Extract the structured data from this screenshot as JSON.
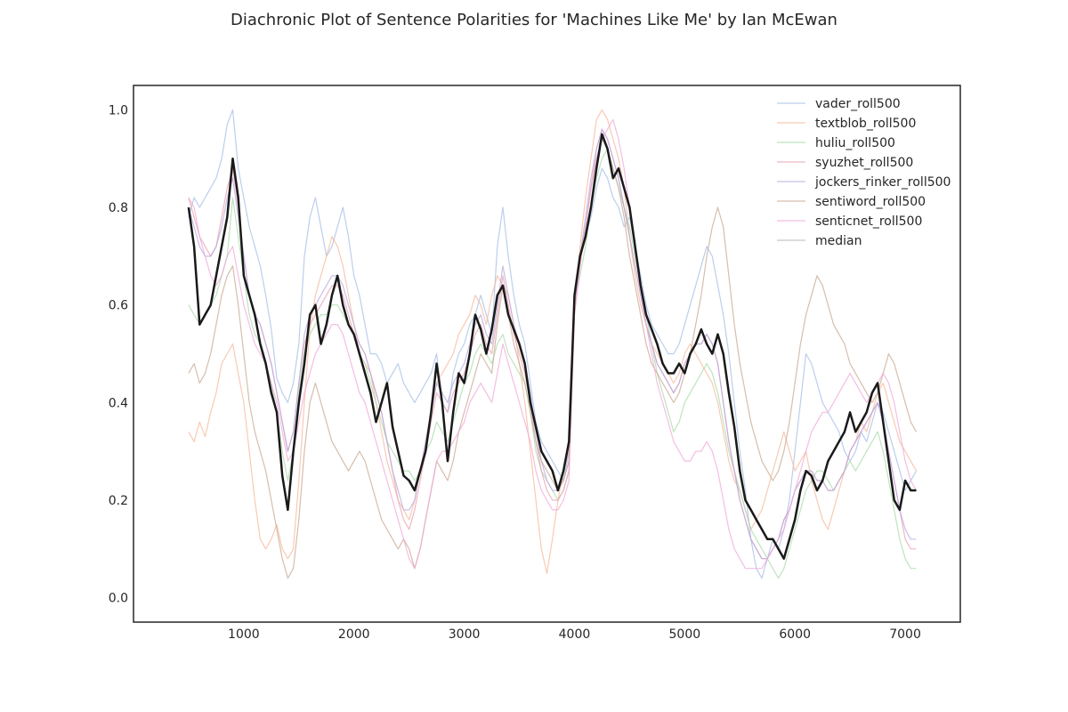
{
  "chart_data": {
    "type": "line",
    "title": "Diachronic Plot of Sentence Polarities for 'Machines Like Me' by Ian McEwan",
    "xlabel": "",
    "ylabel": "",
    "xlim": [
      0,
      7500
    ],
    "ylim": [
      -0.05,
      1.05
    ],
    "xticks": [
      1000,
      2000,
      3000,
      4000,
      5000,
      6000,
      7000
    ],
    "yticks": [
      0.0,
      0.2,
      0.4,
      0.6,
      0.8,
      1.0
    ],
    "grid": false,
    "legend_position": "top-right",
    "x": [
      500,
      550,
      600,
      650,
      700,
      750,
      800,
      850,
      900,
      950,
      1000,
      1050,
      1100,
      1150,
      1200,
      1250,
      1300,
      1350,
      1400,
      1450,
      1500,
      1550,
      1600,
      1650,
      1700,
      1750,
      1800,
      1850,
      1900,
      1950,
      2000,
      2050,
      2100,
      2150,
      2200,
      2250,
      2300,
      2350,
      2400,
      2450,
      2500,
      2550,
      2600,
      2650,
      2700,
      2750,
      2800,
      2850,
      2900,
      2950,
      3000,
      3050,
      3100,
      3150,
      3200,
      3250,
      3300,
      3350,
      3400,
      3450,
      3500,
      3550,
      3600,
      3650,
      3700,
      3750,
      3800,
      3850,
      3900,
      3950,
      4000,
      4050,
      4100,
      4150,
      4200,
      4250,
      4300,
      4350,
      4400,
      4450,
      4500,
      4550,
      4600,
      4650,
      4700,
      4750,
      4800,
      4850,
      4900,
      4950,
      5000,
      5050,
      5100,
      5150,
      5200,
      5250,
      5300,
      5350,
      5400,
      5450,
      5500,
      5550,
      5600,
      5650,
      5700,
      5750,
      5800,
      5850,
      5900,
      5950,
      6000,
      6050,
      6100,
      6150,
      6200,
      6250,
      6300,
      6350,
      6400,
      6450,
      6500,
      6550,
      6600,
      6650,
      6700,
      6750,
      6800,
      6850,
      6900,
      6950,
      7000,
      7050,
      7100
    ],
    "series": [
      {
        "name": "vader_roll500",
        "color": "#a6bde6",
        "values": [
          0.78,
          0.82,
          0.8,
          0.82,
          0.84,
          0.86,
          0.9,
          0.97,
          1.0,
          0.88,
          0.82,
          0.76,
          0.72,
          0.68,
          0.62,
          0.55,
          0.45,
          0.42,
          0.4,
          0.44,
          0.52,
          0.7,
          0.78,
          0.82,
          0.76,
          0.7,
          0.72,
          0.76,
          0.8,
          0.74,
          0.66,
          0.62,
          0.56,
          0.5,
          0.5,
          0.48,
          0.44,
          0.46,
          0.48,
          0.44,
          0.42,
          0.4,
          0.42,
          0.44,
          0.46,
          0.5,
          0.4,
          0.38,
          0.46,
          0.5,
          0.52,
          0.56,
          0.58,
          0.62,
          0.58,
          0.54,
          0.72,
          0.8,
          0.7,
          0.62,
          0.56,
          0.52,
          0.44,
          0.36,
          0.32,
          0.3,
          0.28,
          0.26,
          0.24,
          0.3,
          0.6,
          0.7,
          0.74,
          0.78,
          0.84,
          0.88,
          0.86,
          0.82,
          0.8,
          0.76,
          0.78,
          0.72,
          0.66,
          0.6,
          0.56,
          0.54,
          0.52,
          0.5,
          0.5,
          0.52,
          0.56,
          0.6,
          0.64,
          0.68,
          0.72,
          0.7,
          0.64,
          0.58,
          0.5,
          0.4,
          0.3,
          0.22,
          0.12,
          0.06,
          0.04,
          0.08,
          0.12,
          0.1,
          0.14,
          0.2,
          0.3,
          0.4,
          0.5,
          0.48,
          0.44,
          0.4,
          0.38,
          0.36,
          0.34,
          0.3,
          0.28,
          0.3,
          0.34,
          0.32,
          0.36,
          0.4,
          0.38,
          0.34,
          0.3,
          0.26,
          0.22,
          0.24,
          0.26
        ]
      },
      {
        "name": "textblob_roll500",
        "color": "#f7b89a",
        "values": [
          0.34,
          0.32,
          0.36,
          0.33,
          0.38,
          0.42,
          0.48,
          0.5,
          0.52,
          0.46,
          0.4,
          0.3,
          0.2,
          0.12,
          0.1,
          0.12,
          0.15,
          0.1,
          0.08,
          0.1,
          0.24,
          0.4,
          0.55,
          0.62,
          0.66,
          0.7,
          0.74,
          0.72,
          0.68,
          0.62,
          0.56,
          0.5,
          0.48,
          0.46,
          0.4,
          0.34,
          0.28,
          0.24,
          0.2,
          0.18,
          0.16,
          0.2,
          0.26,
          0.32,
          0.38,
          0.44,
          0.46,
          0.48,
          0.5,
          0.54,
          0.56,
          0.58,
          0.62,
          0.6,
          0.56,
          0.62,
          0.66,
          0.64,
          0.62,
          0.56,
          0.48,
          0.4,
          0.3,
          0.2,
          0.1,
          0.05,
          0.12,
          0.2,
          0.26,
          0.3,
          0.6,
          0.72,
          0.82,
          0.9,
          0.98,
          1.0,
          0.98,
          0.94,
          0.9,
          0.84,
          0.74,
          0.66,
          0.6,
          0.56,
          0.52,
          0.5,
          0.48,
          0.46,
          0.44,
          0.46,
          0.5,
          0.52,
          0.5,
          0.48,
          0.46,
          0.44,
          0.4,
          0.34,
          0.28,
          0.24,
          0.22,
          0.18,
          0.14,
          0.16,
          0.18,
          0.22,
          0.26,
          0.3,
          0.34,
          0.3,
          0.26,
          0.28,
          0.3,
          0.24,
          0.2,
          0.16,
          0.14,
          0.18,
          0.22,
          0.26,
          0.3,
          0.32,
          0.36,
          0.34,
          0.38,
          0.42,
          0.44,
          0.4,
          0.36,
          0.32,
          0.3,
          0.28,
          0.26
        ]
      },
      {
        "name": "huliu_roll500",
        "color": "#a8dba8",
        "values": [
          0.6,
          0.58,
          0.56,
          0.58,
          0.6,
          0.62,
          0.66,
          0.7,
          0.82,
          0.74,
          0.66,
          0.58,
          0.54,
          0.52,
          0.48,
          0.44,
          0.38,
          0.3,
          0.24,
          0.3,
          0.42,
          0.5,
          0.54,
          0.56,
          0.58,
          0.58,
          0.6,
          0.6,
          0.58,
          0.56,
          0.54,
          0.5,
          0.48,
          0.44,
          0.4,
          0.36,
          0.32,
          0.3,
          0.28,
          0.26,
          0.26,
          0.24,
          0.26,
          0.3,
          0.32,
          0.36,
          0.34,
          0.32,
          0.36,
          0.4,
          0.44,
          0.46,
          0.5,
          0.52,
          0.5,
          0.48,
          0.52,
          0.54,
          0.5,
          0.48,
          0.46,
          0.44,
          0.38,
          0.3,
          0.26,
          0.24,
          0.22,
          0.2,
          0.22,
          0.26,
          0.6,
          0.66,
          0.72,
          0.8,
          0.86,
          0.9,
          0.92,
          0.88,
          0.84,
          0.8,
          0.76,
          0.7,
          0.64,
          0.58,
          0.52,
          0.46,
          0.42,
          0.38,
          0.34,
          0.36,
          0.4,
          0.42,
          0.44,
          0.46,
          0.48,
          0.46,
          0.42,
          0.36,
          0.3,
          0.26,
          0.22,
          0.18,
          0.14,
          0.12,
          0.1,
          0.08,
          0.06,
          0.04,
          0.06,
          0.1,
          0.14,
          0.18,
          0.22,
          0.24,
          0.26,
          0.26,
          0.24,
          0.22,
          0.24,
          0.26,
          0.28,
          0.26,
          0.28,
          0.3,
          0.32,
          0.34,
          0.3,
          0.24,
          0.18,
          0.12,
          0.08,
          0.06,
          0.06
        ]
      },
      {
        "name": "syuzhet_roll500",
        "color": "#e8a0b0",
        "values": [
          0.82,
          0.78,
          0.74,
          0.72,
          0.7,
          0.72,
          0.78,
          0.84,
          0.88,
          0.8,
          0.7,
          0.62,
          0.58,
          0.56,
          0.52,
          0.48,
          0.42,
          0.36,
          0.3,
          0.34,
          0.44,
          0.52,
          0.56,
          0.58,
          0.6,
          0.62,
          0.64,
          0.64,
          0.62,
          0.58,
          0.54,
          0.52,
          0.5,
          0.46,
          0.42,
          0.38,
          0.32,
          0.26,
          0.2,
          0.16,
          0.14,
          0.18,
          0.24,
          0.3,
          0.36,
          0.42,
          0.4,
          0.38,
          0.42,
          0.44,
          0.46,
          0.5,
          0.54,
          0.56,
          0.52,
          0.5,
          0.58,
          0.66,
          0.6,
          0.54,
          0.5,
          0.46,
          0.4,
          0.32,
          0.26,
          0.22,
          0.2,
          0.2,
          0.22,
          0.26,
          0.58,
          0.68,
          0.76,
          0.84,
          0.92,
          0.96,
          0.94,
          0.9,
          0.86,
          0.8,
          0.74,
          0.68,
          0.62,
          0.56,
          0.52,
          0.48,
          0.46,
          0.44,
          0.42,
          0.44,
          0.48,
          0.5,
          0.52,
          0.52,
          0.54,
          0.52,
          0.48,
          0.4,
          0.32,
          0.26,
          0.2,
          0.16,
          0.12,
          0.1,
          0.08,
          0.08,
          0.1,
          0.12,
          0.16,
          0.18,
          0.22,
          0.24,
          0.26,
          0.26,
          0.24,
          0.24,
          0.22,
          0.22,
          0.24,
          0.26,
          0.3,
          0.32,
          0.34,
          0.36,
          0.38,
          0.4,
          0.36,
          0.3,
          0.24,
          0.18,
          0.12,
          0.1,
          0.1
        ]
      },
      {
        "name": "jockers_rinker_roll500",
        "color": "#b8a8e0",
        "values": [
          0.8,
          0.76,
          0.72,
          0.7,
          0.7,
          0.72,
          0.76,
          0.82,
          0.86,
          0.78,
          0.7,
          0.62,
          0.58,
          0.56,
          0.52,
          0.48,
          0.42,
          0.36,
          0.3,
          0.34,
          0.44,
          0.54,
          0.58,
          0.6,
          0.62,
          0.64,
          0.66,
          0.66,
          0.64,
          0.6,
          0.56,
          0.52,
          0.5,
          0.46,
          0.42,
          0.38,
          0.32,
          0.26,
          0.22,
          0.18,
          0.18,
          0.2,
          0.26,
          0.32,
          0.38,
          0.44,
          0.42,
          0.4,
          0.44,
          0.46,
          0.48,
          0.52,
          0.56,
          0.58,
          0.54,
          0.52,
          0.6,
          0.68,
          0.62,
          0.56,
          0.52,
          0.48,
          0.42,
          0.34,
          0.28,
          0.24,
          0.22,
          0.22,
          0.24,
          0.28,
          0.6,
          0.7,
          0.78,
          0.86,
          0.92,
          0.96,
          0.94,
          0.9,
          0.86,
          0.8,
          0.74,
          0.68,
          0.62,
          0.56,
          0.52,
          0.48,
          0.46,
          0.44,
          0.42,
          0.44,
          0.48,
          0.5,
          0.52,
          0.52,
          0.54,
          0.52,
          0.48,
          0.4,
          0.32,
          0.26,
          0.2,
          0.16,
          0.12,
          0.1,
          0.08,
          0.08,
          0.1,
          0.12,
          0.16,
          0.18,
          0.22,
          0.24,
          0.26,
          0.26,
          0.24,
          0.24,
          0.22,
          0.22,
          0.24,
          0.26,
          0.3,
          0.32,
          0.34,
          0.36,
          0.38,
          0.4,
          0.36,
          0.3,
          0.24,
          0.18,
          0.14,
          0.12,
          0.12
        ]
      },
      {
        "name": "sentiword_roll500",
        "color": "#c8a890",
        "values": [
          0.46,
          0.48,
          0.44,
          0.46,
          0.5,
          0.56,
          0.62,
          0.66,
          0.68,
          0.6,
          0.5,
          0.4,
          0.34,
          0.3,
          0.26,
          0.2,
          0.14,
          0.08,
          0.04,
          0.06,
          0.16,
          0.3,
          0.4,
          0.44,
          0.4,
          0.36,
          0.32,
          0.3,
          0.28,
          0.26,
          0.28,
          0.3,
          0.28,
          0.24,
          0.2,
          0.16,
          0.14,
          0.12,
          0.1,
          0.12,
          0.1,
          0.06,
          0.1,
          0.16,
          0.22,
          0.28,
          0.26,
          0.24,
          0.28,
          0.34,
          0.38,
          0.42,
          0.46,
          0.5,
          0.48,
          0.46,
          0.56,
          0.64,
          0.58,
          0.52,
          0.48,
          0.44,
          0.38,
          0.32,
          0.28,
          0.26,
          0.24,
          0.22,
          0.24,
          0.28,
          0.62,
          0.7,
          0.76,
          0.84,
          0.9,
          0.94,
          0.92,
          0.88,
          0.84,
          0.78,
          0.7,
          0.64,
          0.58,
          0.52,
          0.48,
          0.46,
          0.44,
          0.42,
          0.4,
          0.42,
          0.46,
          0.5,
          0.56,
          0.62,
          0.7,
          0.76,
          0.8,
          0.76,
          0.66,
          0.56,
          0.48,
          0.42,
          0.36,
          0.32,
          0.28,
          0.26,
          0.24,
          0.26,
          0.3,
          0.36,
          0.44,
          0.52,
          0.58,
          0.62,
          0.66,
          0.64,
          0.6,
          0.56,
          0.54,
          0.52,
          0.48,
          0.46,
          0.44,
          0.42,
          0.4,
          0.42,
          0.46,
          0.5,
          0.48,
          0.44,
          0.4,
          0.36,
          0.34
        ]
      },
      {
        "name": "senticnet_roll500",
        "color": "#f0a8d8",
        "values": [
          0.82,
          0.8,
          0.74,
          0.7,
          0.66,
          0.64,
          0.66,
          0.7,
          0.72,
          0.66,
          0.6,
          0.56,
          0.52,
          0.5,
          0.48,
          0.44,
          0.4,
          0.34,
          0.28,
          0.3,
          0.36,
          0.42,
          0.46,
          0.5,
          0.52,
          0.54,
          0.56,
          0.56,
          0.54,
          0.5,
          0.46,
          0.42,
          0.4,
          0.36,
          0.32,
          0.28,
          0.24,
          0.2,
          0.16,
          0.12,
          0.08,
          0.06,
          0.1,
          0.16,
          0.22,
          0.28,
          0.3,
          0.3,
          0.32,
          0.34,
          0.36,
          0.4,
          0.42,
          0.44,
          0.42,
          0.4,
          0.46,
          0.52,
          0.48,
          0.44,
          0.4,
          0.36,
          0.32,
          0.26,
          0.22,
          0.2,
          0.18,
          0.18,
          0.2,
          0.24,
          0.58,
          0.68,
          0.76,
          0.84,
          0.9,
          0.94,
          0.96,
          0.98,
          0.94,
          0.88,
          0.8,
          0.72,
          0.64,
          0.56,
          0.5,
          0.44,
          0.4,
          0.36,
          0.32,
          0.3,
          0.28,
          0.28,
          0.3,
          0.3,
          0.32,
          0.3,
          0.26,
          0.2,
          0.14,
          0.1,
          0.08,
          0.06,
          0.06,
          0.06,
          0.06,
          0.08,
          0.1,
          0.12,
          0.14,
          0.18,
          0.22,
          0.26,
          0.3,
          0.34,
          0.36,
          0.38,
          0.38,
          0.4,
          0.42,
          0.44,
          0.46,
          0.44,
          0.42,
          0.4,
          0.42,
          0.44,
          0.46,
          0.44,
          0.4,
          0.34,
          0.28,
          0.24,
          0.22
        ]
      },
      {
        "name": "median",
        "color": "#1a1a1a",
        "width": 2.5,
        "values": [
          0.8,
          0.72,
          0.56,
          0.58,
          0.6,
          0.66,
          0.72,
          0.78,
          0.9,
          0.82,
          0.66,
          0.62,
          0.58,
          0.52,
          0.48,
          0.42,
          0.38,
          0.25,
          0.18,
          0.3,
          0.4,
          0.48,
          0.58,
          0.6,
          0.52,
          0.56,
          0.62,
          0.66,
          0.6,
          0.56,
          0.54,
          0.5,
          0.46,
          0.42,
          0.36,
          0.4,
          0.44,
          0.35,
          0.3,
          0.25,
          0.24,
          0.22,
          0.26,
          0.3,
          0.38,
          0.48,
          0.4,
          0.28,
          0.38,
          0.46,
          0.44,
          0.5,
          0.58,
          0.55,
          0.5,
          0.55,
          0.62,
          0.64,
          0.58,
          0.55,
          0.52,
          0.48,
          0.4,
          0.35,
          0.3,
          0.28,
          0.26,
          0.22,
          0.26,
          0.32,
          0.62,
          0.7,
          0.74,
          0.8,
          0.88,
          0.95,
          0.92,
          0.86,
          0.88,
          0.84,
          0.8,
          0.72,
          0.64,
          0.58,
          0.55,
          0.52,
          0.48,
          0.46,
          0.46,
          0.48,
          0.46,
          0.5,
          0.52,
          0.55,
          0.52,
          0.5,
          0.54,
          0.5,
          0.42,
          0.35,
          0.26,
          0.2,
          0.18,
          0.16,
          0.14,
          0.12,
          0.12,
          0.1,
          0.08,
          0.12,
          0.16,
          0.22,
          0.26,
          0.25,
          0.22,
          0.24,
          0.28,
          0.3,
          0.32,
          0.34,
          0.38,
          0.34,
          0.36,
          0.38,
          0.42,
          0.44,
          0.36,
          0.28,
          0.2,
          0.18,
          0.24,
          0.22,
          0.22
        ]
      }
    ]
  }
}
